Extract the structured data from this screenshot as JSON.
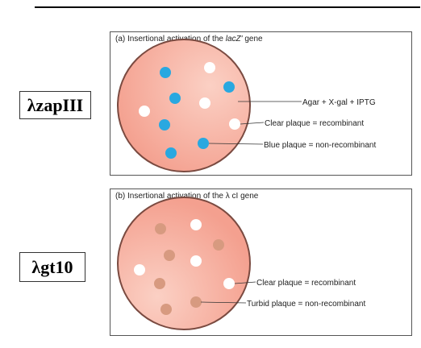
{
  "phage_labels": {
    "a": "λzapIII",
    "b": "λgt10"
  },
  "panel_a": {
    "caption_prefix": "(a) Insertional activation of the ",
    "caption_gene": "lacZ'",
    "caption_suffix": " gene",
    "callouts": {
      "agar": "Agar + X-gal + IPTG",
      "clear": "Clear plaque = recombinant",
      "colored": "Blue plaque = non-recombinant"
    }
  },
  "panel_b": {
    "caption": "(b) Insertional activation of the λ cI gene",
    "callouts": {
      "clear": "Clear plaque = recombinant",
      "colored": "Turbid plaque = non-recombinant"
    }
  },
  "colors": {
    "plate_fill": "#f4a08f",
    "plate_highlight": "#fbd0c4",
    "plate_rim": "#7a4a40",
    "blue_plaque": "#29a8e0",
    "clear_plaque": "#ffffff",
    "turbid_plaque": "#d79a80"
  }
}
